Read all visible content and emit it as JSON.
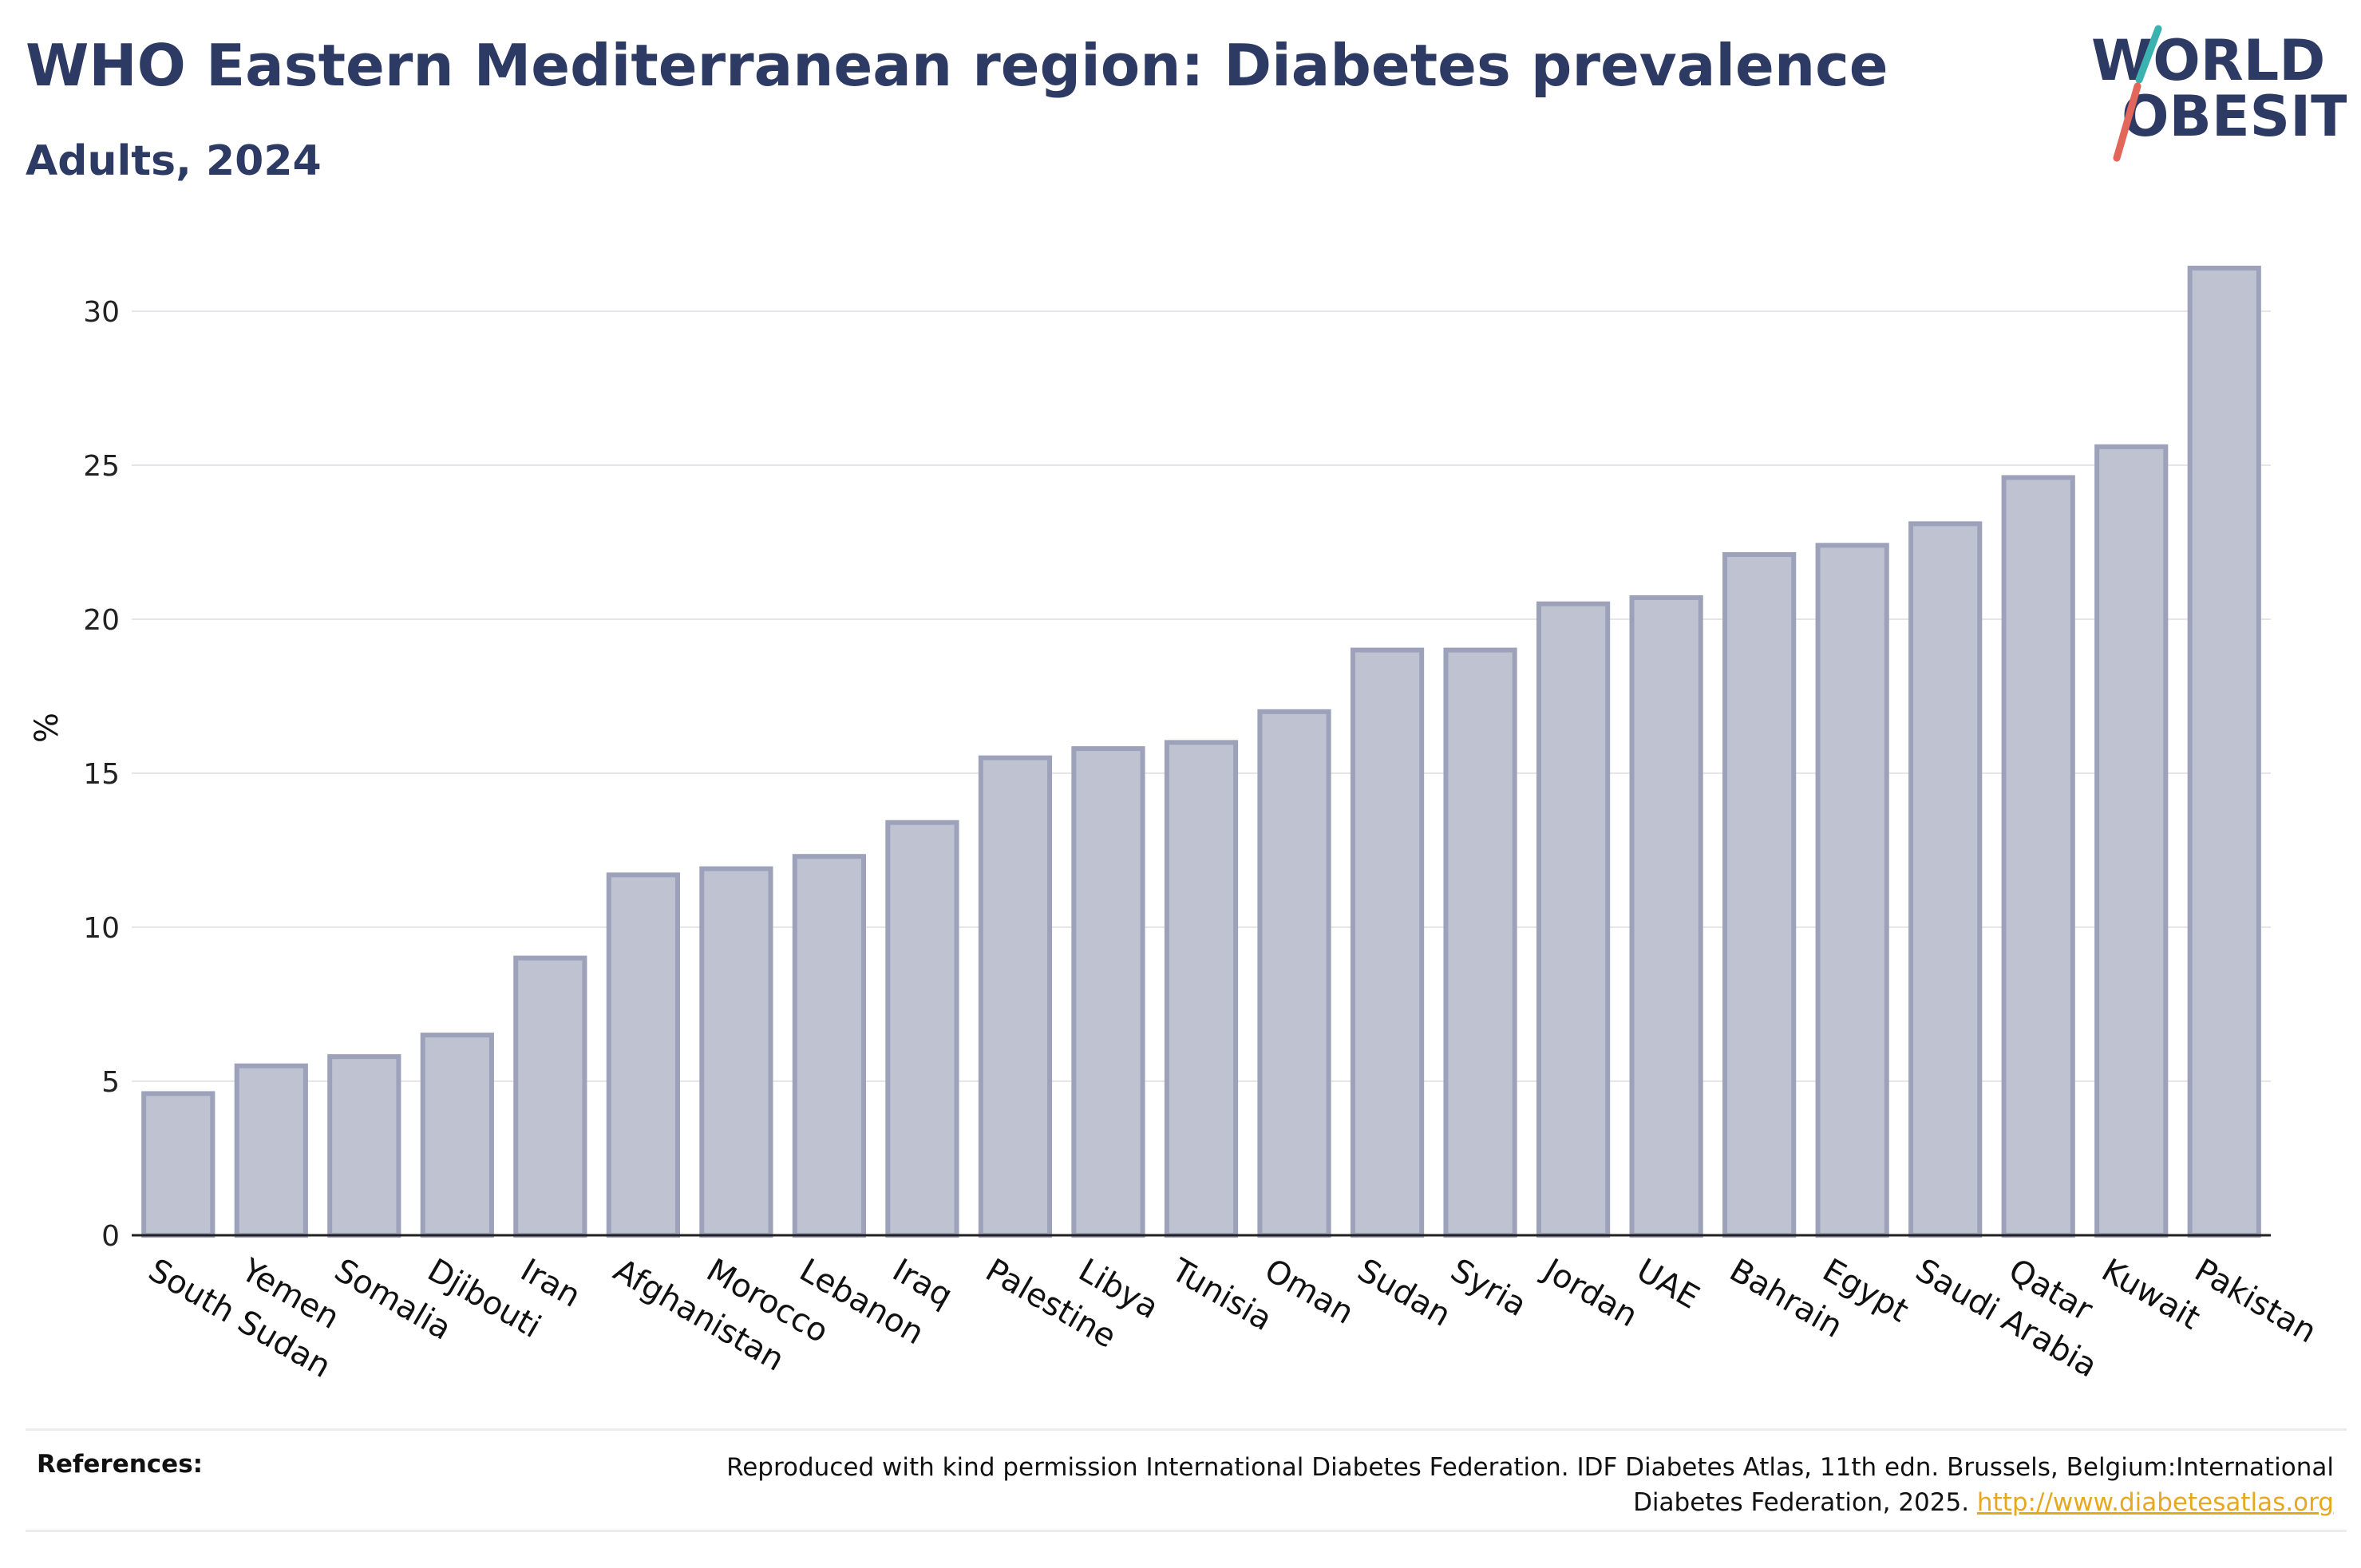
{
  "header": {
    "title": "WHO Eastern Mediterranean region: Diabetes prevalence",
    "subtitle": "Adults, 2024"
  },
  "logo": {
    "line1": "WORLD",
    "line2": "OBESITY",
    "slash_colors": [
      "#3ab3b0",
      "#e2665a"
    ],
    "text_color": "#2d3a64"
  },
  "references": {
    "label": "References:",
    "text": "Reproduced with kind permission International Diabetes Federation. IDF Diabetes Atlas, 11th edn. Brussels, Belgium:International Diabetes Federation, 2025.",
    "link": "http://www.diabetesatlas.org"
  },
  "colors": {
    "bar_fill": "#bfc2d1",
    "bar_stroke": "#9da2ba",
    "text": "#2d3a64"
  },
  "chart_data": {
    "type": "bar",
    "title": "WHO Eastern Mediterranean region: Diabetes prevalence",
    "subtitle": "Adults, 2024",
    "xlabel": "",
    "ylabel": "%",
    "ylim": [
      0,
      32
    ],
    "yticks": [
      0,
      5,
      10,
      15,
      20,
      25,
      30
    ],
    "grid": true,
    "categories": [
      "South Sudan",
      "Yemen",
      "Somalia",
      "Djibouti",
      "Iran",
      "Afghanistan",
      "Morocco",
      "Lebanon",
      "Iraq",
      "Palestine",
      "Libya",
      "Tunisia",
      "Oman",
      "Sudan",
      "Syria",
      "Jordan",
      "UAE",
      "Bahrain",
      "Egypt",
      "Saudi Arabia",
      "Qatar",
      "Kuwait",
      "Pakistan"
    ],
    "values": [
      4.6,
      5.5,
      5.8,
      6.5,
      9.0,
      11.7,
      11.9,
      12.3,
      13.4,
      15.5,
      15.8,
      16.0,
      17.0,
      19.0,
      19.0,
      20.5,
      20.7,
      22.1,
      22.4,
      23.1,
      24.6,
      25.6,
      31.4
    ]
  }
}
